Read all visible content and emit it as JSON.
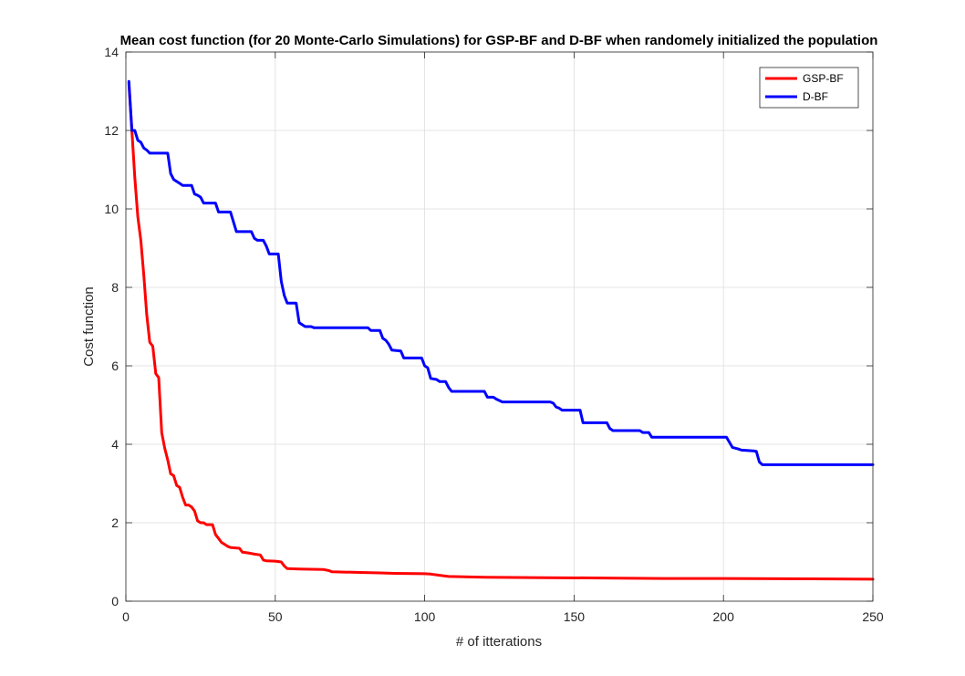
{
  "chart_data": {
    "type": "line",
    "title": "Mean cost function (for 20 Monte-Carlo Simulations) for GSP-BF and D-BF when randomely initialized the population",
    "xlabel": "# of itterations",
    "ylabel": "Cost function",
    "xlim": [
      0,
      250
    ],
    "ylim": [
      0,
      14
    ],
    "xticks": [
      0,
      50,
      100,
      150,
      200,
      250
    ],
    "yticks": [
      0,
      2,
      4,
      6,
      8,
      10,
      12,
      14
    ],
    "grid": true,
    "legend_position": "top-right",
    "series": [
      {
        "name": "GSP-BF",
        "color": "#ff0000",
        "points": [
          [
            1,
            13.2
          ],
          [
            2,
            12.0
          ],
          [
            3,
            10.8
          ],
          [
            4,
            9.8
          ],
          [
            5,
            9.2
          ],
          [
            6,
            8.3
          ],
          [
            7,
            7.3
          ],
          [
            8,
            6.6
          ],
          [
            9,
            6.5
          ],
          [
            10,
            5.8
          ],
          [
            11,
            5.7
          ],
          [
            12,
            4.3
          ],
          [
            13,
            3.9
          ],
          [
            14,
            3.6
          ],
          [
            15,
            3.25
          ],
          [
            16,
            3.2
          ],
          [
            17,
            2.95
          ],
          [
            18,
            2.9
          ],
          [
            19,
            2.65
          ],
          [
            20,
            2.45
          ],
          [
            21,
            2.45
          ],
          [
            22,
            2.4
          ],
          [
            23,
            2.3
          ],
          [
            24,
            2.05
          ],
          [
            25,
            2.0
          ],
          [
            26,
            2.0
          ],
          [
            27,
            1.95
          ],
          [
            28,
            1.95
          ],
          [
            29,
            1.95
          ],
          [
            30,
            1.7
          ],
          [
            31,
            1.6
          ],
          [
            32,
            1.5
          ],
          [
            33,
            1.45
          ],
          [
            34,
            1.4
          ],
          [
            35,
            1.37
          ],
          [
            38,
            1.35
          ],
          [
            39,
            1.25
          ],
          [
            41,
            1.23
          ],
          [
            43,
            1.2
          ],
          [
            45,
            1.18
          ],
          [
            46,
            1.05
          ],
          [
            47,
            1.03
          ],
          [
            50,
            1.02
          ],
          [
            52,
            1.0
          ],
          [
            53,
            0.9
          ],
          [
            54,
            0.83
          ],
          [
            58,
            0.82
          ],
          [
            66,
            0.81
          ],
          [
            68,
            0.78
          ],
          [
            69,
            0.75
          ],
          [
            80,
            0.73
          ],
          [
            85,
            0.72
          ],
          [
            90,
            0.71
          ],
          [
            100,
            0.7
          ],
          [
            102,
            0.69
          ],
          [
            105,
            0.66
          ],
          [
            108,
            0.63
          ],
          [
            120,
            0.61
          ],
          [
            140,
            0.6
          ],
          [
            160,
            0.59
          ],
          [
            180,
            0.58
          ],
          [
            200,
            0.58
          ],
          [
            230,
            0.57
          ],
          [
            250,
            0.56
          ]
        ]
      },
      {
        "name": "D-BF",
        "color": "#0000ff",
        "points": [
          [
            1,
            13.25
          ],
          [
            2,
            12.0
          ],
          [
            3,
            12.0
          ],
          [
            4,
            11.75
          ],
          [
            5,
            11.7
          ],
          [
            6,
            11.55
          ],
          [
            7,
            11.5
          ],
          [
            8,
            11.42
          ],
          [
            14,
            11.42
          ],
          [
            15,
            10.9
          ],
          [
            16,
            10.75
          ],
          [
            18,
            10.65
          ],
          [
            19,
            10.6
          ],
          [
            22,
            10.6
          ],
          [
            23,
            10.38
          ],
          [
            24,
            10.35
          ],
          [
            25,
            10.3
          ],
          [
            26,
            10.15
          ],
          [
            30,
            10.15
          ],
          [
            31,
            9.92
          ],
          [
            35,
            9.92
          ],
          [
            37,
            9.42
          ],
          [
            42,
            9.42
          ],
          [
            43,
            9.25
          ],
          [
            44,
            9.2
          ],
          [
            46,
            9.2
          ],
          [
            47,
            9.05
          ],
          [
            48,
            8.85
          ],
          [
            51,
            8.85
          ],
          [
            52,
            8.15
          ],
          [
            53,
            7.8
          ],
          [
            54,
            7.6
          ],
          [
            57,
            7.6
          ],
          [
            58,
            7.1
          ],
          [
            59,
            7.05
          ],
          [
            60,
            7.0
          ],
          [
            62,
            7.0
          ],
          [
            63,
            6.97
          ],
          [
            81,
            6.97
          ],
          [
            82,
            6.9
          ],
          [
            85,
            6.9
          ],
          [
            86,
            6.7
          ],
          [
            87,
            6.65
          ],
          [
            88,
            6.55
          ],
          [
            89,
            6.4
          ],
          [
            92,
            6.38
          ],
          [
            93,
            6.2
          ],
          [
            99,
            6.2
          ],
          [
            100,
            6.0
          ],
          [
            101,
            5.95
          ],
          [
            102,
            5.68
          ],
          [
            104,
            5.65
          ],
          [
            105,
            5.6
          ],
          [
            107,
            5.6
          ],
          [
            108,
            5.45
          ],
          [
            109,
            5.35
          ],
          [
            120,
            5.35
          ],
          [
            121,
            5.2
          ],
          [
            123,
            5.2
          ],
          [
            124,
            5.15
          ],
          [
            126,
            5.08
          ],
          [
            142,
            5.08
          ],
          [
            143,
            5.05
          ],
          [
            144,
            4.95
          ],
          [
            145,
            4.92
          ],
          [
            146,
            4.87
          ],
          [
            152,
            4.87
          ],
          [
            153,
            4.55
          ],
          [
            161,
            4.55
          ],
          [
            162,
            4.4
          ],
          [
            163,
            4.35
          ],
          [
            172,
            4.35
          ],
          [
            173,
            4.3
          ],
          [
            175,
            4.3
          ],
          [
            176,
            4.18
          ],
          [
            201,
            4.18
          ],
          [
            202,
            4.05
          ],
          [
            203,
            3.92
          ],
          [
            205,
            3.88
          ],
          [
            206,
            3.85
          ],
          [
            210,
            3.83
          ],
          [
            211,
            3.82
          ],
          [
            212,
            3.55
          ],
          [
            213,
            3.48
          ],
          [
            250,
            3.48
          ]
        ]
      }
    ]
  }
}
